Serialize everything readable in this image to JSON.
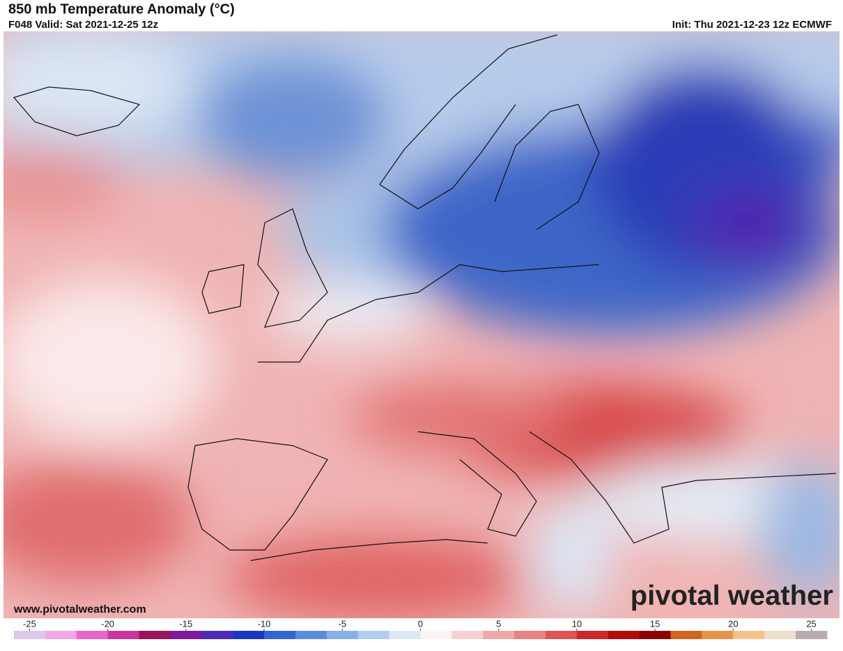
{
  "header": {
    "title": "850 mb Temperature Anomaly (°C)",
    "valid": "F048 Valid: Sat 2021-12-25 12z",
    "init": "Init: Thu 2021-12-23 12z ECMWF"
  },
  "footer": {
    "website": "www.pivotalweather.com",
    "logo": "pivotal weather"
  },
  "colorbar": {
    "range": [
      -26,
      26
    ],
    "ticks": [
      -25,
      -20,
      -15,
      -10,
      -5,
      0,
      5,
      10,
      15,
      20,
      25
    ],
    "colors": [
      "#dcc8ec",
      "#f0a8e4",
      "#e868c8",
      "#c83898",
      "#9a1458",
      "#7a1c9c",
      "#4c2cb4",
      "#1c38c0",
      "#3464d0",
      "#5c8cdc",
      "#88b0e4",
      "#b0cdee",
      "#dce8f6",
      "#fff4f4",
      "#f6d0d0",
      "#eeaaaa",
      "#e68282",
      "#dc5656",
      "#cc2a2a",
      "#b00c0c",
      "#8a0000",
      "#d06424",
      "#e4944c",
      "#f2c48c",
      "#eee0cc",
      "#b8acac"
    ]
  }
}
